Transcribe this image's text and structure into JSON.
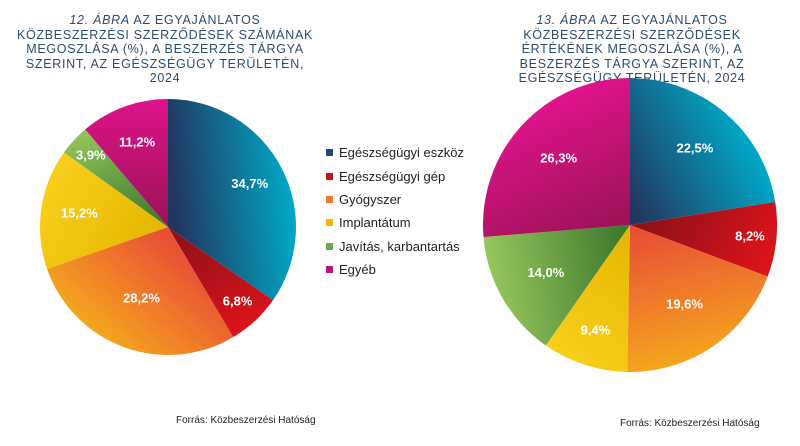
{
  "chart_data": [
    {
      "type": "pie",
      "title_number": "12. ábra",
      "title": "az egyajánlatos közbeszerzési szerződések számának megoszlása (%), a beszerzés tárgya szerint, az egészségügy területén, 2024",
      "unit": "%",
      "slices": [
        {
          "label": "Egészségügyi eszköz",
          "value": 34.7,
          "display": "34,7%"
        },
        {
          "label": "Egészségügyi gép",
          "value": 6.8,
          "display": "6,8%"
        },
        {
          "label": "Gyógyszer",
          "value": 28.2,
          "display": "28,2%"
        },
        {
          "label": "Implantátum",
          "value": 15.2,
          "display": "15,2%"
        },
        {
          "label": "Javítás, karbantartás",
          "value": 3.9,
          "display": "3,9%"
        },
        {
          "label": "Egyéb",
          "value": 11.2,
          "display": "11,2%"
        }
      ],
      "source": "Forrás: Közbeszerzési Hatóság"
    },
    {
      "type": "pie",
      "title_number": "13. ábra",
      "title": "az egyajánlatos közbeszerzési szerződések értékének megoszlása (%), a beszerzés tárgya szerint, az egészségügy területén, 2024",
      "unit": "%",
      "slices": [
        {
          "label": "Egészségügyi eszköz",
          "value": 22.5,
          "display": "22,5%"
        },
        {
          "label": "Egészségügyi gép",
          "value": 8.2,
          "display": "8,2%"
        },
        {
          "label": "Gyógyszer",
          "value": 19.6,
          "display": "19,6%"
        },
        {
          "label": "Implantátum",
          "value": 9.4,
          "display": "9,4%"
        },
        {
          "label": "Javítás, karbantartás",
          "value": 14.0,
          "display": "14,0%"
        },
        {
          "label": "Egyéb",
          "value": 26.3,
          "display": "26,3%"
        }
      ],
      "source": "Forrás: Közbeszerzési Hatóság"
    }
  ],
  "legend": {
    "placement": "between charts",
    "items": [
      {
        "label": "Egészségügyi eszköz",
        "color": "#1e4a7a"
      },
      {
        "label": "Egészségügyi gép",
        "color": "#c4161c"
      },
      {
        "label": "Gyógyszer",
        "color": "#ef7a2d"
      },
      {
        "label": "Implantátum",
        "color": "#f7b500"
      },
      {
        "label": "Javítás, karbantartás",
        "color": "#6aa84f"
      },
      {
        "label": "Egyéb",
        "color": "#c2107a"
      }
    ]
  },
  "gradients": [
    [
      "#22365f",
      "#00a9c7"
    ],
    [
      "#8e1118",
      "#e0131b"
    ],
    [
      "#e94f35",
      "#f5a51e"
    ],
    [
      "#e6b700",
      "#f8cf1c"
    ],
    [
      "#3d7a2e",
      "#97c65b"
    ],
    [
      "#9e1358",
      "#e0138c"
    ]
  ]
}
